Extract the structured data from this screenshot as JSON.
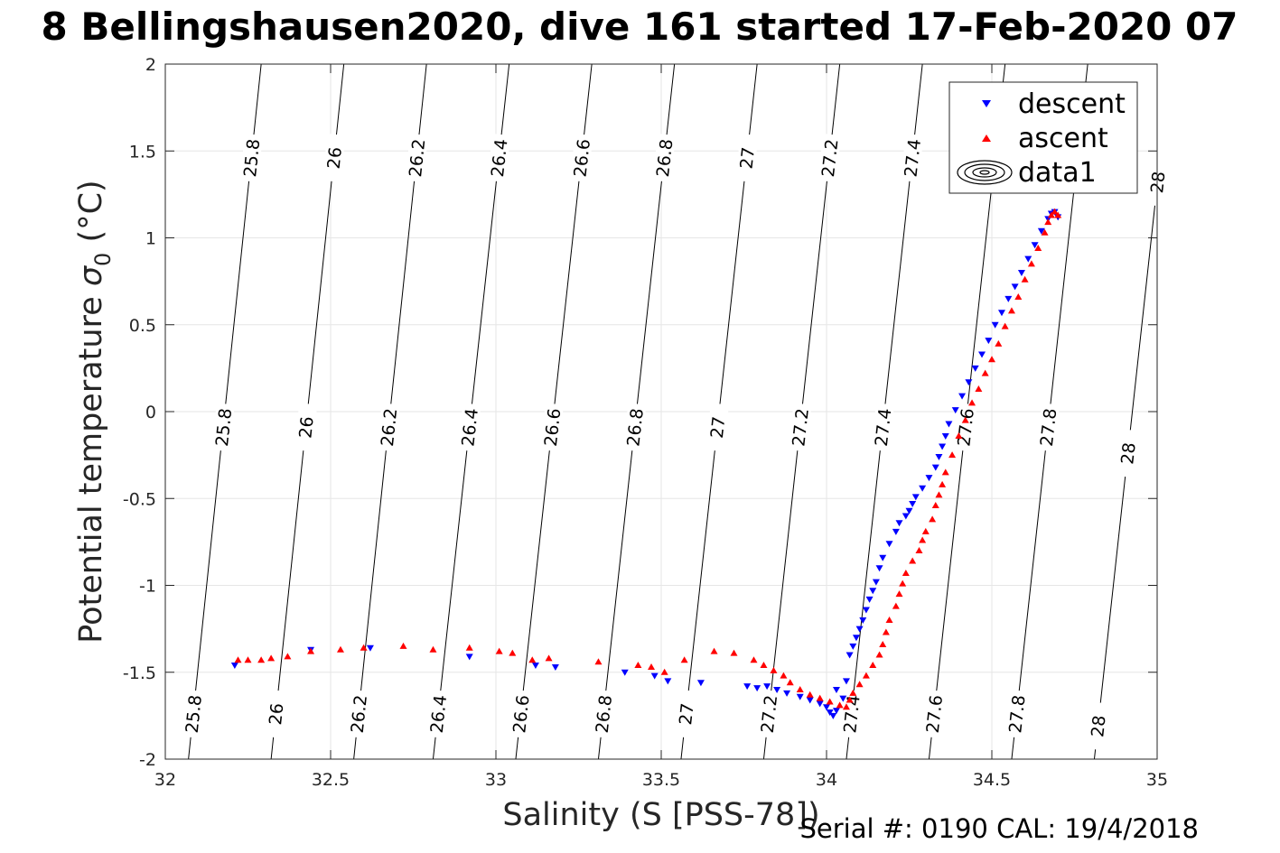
{
  "chart_data": {
    "type": "scatter",
    "title": "8 Bellingshausen2020, dive 161 started 17-Feb-2020 07",
    "xlabel": "Salinity (S [PSS-78])",
    "ylabel_main": "Potential temperature ",
    "ylabel_symbol": "σ",
    "ylabel_subscript": "0",
    "ylabel_unit": " (°C)",
    "footer": "Serial #: 0190  CAL: 19/4/2018",
    "xlim": [
      32,
      35
    ],
    "ylim": [
      -2,
      2
    ],
    "xticks": [
      32,
      32.5,
      33,
      33.5,
      34,
      34.5,
      35
    ],
    "xtick_labels": [
      "32",
      "32.5",
      "33",
      "33.5",
      "34",
      "34.5",
      "35"
    ],
    "yticks": [
      -2,
      -1.5,
      -1,
      -0.5,
      0,
      0.5,
      1,
      1.5,
      2
    ],
    "ytick_labels": [
      "-2",
      "-1.5",
      "-1",
      "-0.5",
      "0",
      "0.5",
      "1",
      "1.5",
      "2"
    ],
    "grid": true,
    "legend_position": "top-right",
    "legend": [
      {
        "label": "descent",
        "marker": "triangle-down",
        "color": "#0000ff"
      },
      {
        "label": "ascent",
        "marker": "triangle-up",
        "color": "#ff0000"
      },
      {
        "label": "data1",
        "marker": "contour",
        "color": "#000000"
      }
    ],
    "density_contours": [
      {
        "level": 25.8,
        "label": "25.8",
        "s_bottom": 32.07,
        "s_top": 32.29,
        "labels_at_t": [
          -1.74,
          -0.09,
          1.46
        ]
      },
      {
        "level": 26.0,
        "label": "26",
        "s_bottom": 32.32,
        "s_top": 32.54,
        "labels_at_t": [
          -1.74,
          -0.09,
          1.46
        ]
      },
      {
        "level": 26.2,
        "label": "26.2",
        "s_bottom": 32.57,
        "s_top": 32.79,
        "labels_at_t": [
          -1.74,
          -0.09,
          1.46
        ]
      },
      {
        "level": 26.4,
        "label": "26.4",
        "s_bottom": 32.81,
        "s_top": 33.04,
        "labels_at_t": [
          -1.74,
          -0.09,
          1.46
        ]
      },
      {
        "level": 26.6,
        "label": "26.6",
        "s_bottom": 33.06,
        "s_top": 33.29,
        "labels_at_t": [
          -1.74,
          -0.09,
          1.46
        ]
      },
      {
        "level": 26.8,
        "label": "26.8",
        "s_bottom": 33.31,
        "s_top": 33.54,
        "labels_at_t": [
          -1.74,
          -0.09,
          1.46
        ]
      },
      {
        "level": 27.0,
        "label": "27",
        "s_bottom": 33.56,
        "s_top": 33.79,
        "labels_at_t": [
          -1.74,
          -0.09,
          1.46
        ]
      },
      {
        "level": 27.2,
        "label": "27.2",
        "s_bottom": 33.81,
        "s_top": 34.04,
        "labels_at_t": [
          -1.74,
          -0.09,
          1.46
        ]
      },
      {
        "level": 27.4,
        "label": "27.4",
        "s_bottom": 34.06,
        "s_top": 34.29,
        "labels_at_t": [
          -1.74,
          -0.09,
          1.46
        ]
      },
      {
        "level": 27.6,
        "label": "27.6",
        "s_bottom": 34.31,
        "s_top": 34.54,
        "labels_at_t": [
          -1.74,
          -0.09
        ]
      },
      {
        "level": 27.8,
        "label": "27.8",
        "s_bottom": 34.56,
        "s_top": 34.79,
        "labels_at_t": [
          -1.74,
          -0.09
        ]
      },
      {
        "level": 28.0,
        "label": "28",
        "s_bottom": 34.81,
        "s_top": 35.04,
        "labels_at_t": [
          -1.81,
          -0.24,
          1.32
        ]
      }
    ],
    "series": [
      {
        "name": "descent",
        "marker": "triangle-down",
        "color": "#0000ff",
        "points": [
          [
            32.21,
            -1.46
          ],
          [
            32.44,
            -1.37
          ],
          [
            32.62,
            -1.36
          ],
          [
            32.92,
            -1.41
          ],
          [
            33.12,
            -1.46
          ],
          [
            33.18,
            -1.47
          ],
          [
            33.39,
            -1.5
          ],
          [
            33.48,
            -1.52
          ],
          [
            33.52,
            -1.55
          ],
          [
            33.62,
            -1.56
          ],
          [
            33.76,
            -1.58
          ],
          [
            33.79,
            -1.59
          ],
          [
            33.82,
            -1.58
          ],
          [
            33.85,
            -1.6
          ],
          [
            33.88,
            -1.62
          ],
          [
            33.92,
            -1.64
          ],
          [
            33.95,
            -1.66
          ],
          [
            33.98,
            -1.68
          ],
          [
            34.0,
            -1.7
          ],
          [
            34.01,
            -1.73
          ],
          [
            34.02,
            -1.75
          ],
          [
            34.03,
            -1.72
          ],
          [
            34.03,
            -1.6
          ],
          [
            34.05,
            -1.65
          ],
          [
            34.06,
            -1.55
          ],
          [
            34.07,
            -1.4
          ],
          [
            34.08,
            -1.35
          ],
          [
            34.09,
            -1.3
          ],
          [
            34.1,
            -1.25
          ],
          [
            34.11,
            -1.2
          ],
          [
            34.12,
            -1.14
          ],
          [
            34.13,
            -1.08
          ],
          [
            34.14,
            -1.03
          ],
          [
            34.15,
            -0.98
          ],
          [
            34.16,
            -0.9
          ],
          [
            34.17,
            -0.84
          ],
          [
            34.19,
            -0.76
          ],
          [
            34.21,
            -0.69
          ],
          [
            34.22,
            -0.64
          ],
          [
            34.24,
            -0.6
          ],
          [
            34.25,
            -0.57
          ],
          [
            34.26,
            -0.53
          ],
          [
            34.27,
            -0.49
          ],
          [
            34.29,
            -0.44
          ],
          [
            34.31,
            -0.38
          ],
          [
            34.33,
            -0.32
          ],
          [
            34.34,
            -0.26
          ],
          [
            34.35,
            -0.2
          ],
          [
            34.36,
            -0.14
          ],
          [
            34.37,
            -0.07
          ],
          [
            34.39,
            0.01
          ],
          [
            34.41,
            0.09
          ],
          [
            34.43,
            0.17
          ],
          [
            34.45,
            0.25
          ],
          [
            34.47,
            0.33
          ],
          [
            34.49,
            0.41
          ],
          [
            34.51,
            0.5
          ],
          [
            34.53,
            0.57
          ],
          [
            34.55,
            0.65
          ],
          [
            34.57,
            0.72
          ],
          [
            34.59,
            0.8
          ],
          [
            34.61,
            0.88
          ],
          [
            34.63,
            0.96
          ],
          [
            34.65,
            1.04
          ],
          [
            34.67,
            1.11
          ],
          [
            34.68,
            1.14
          ],
          [
            34.69,
            1.15
          ],
          [
            34.7,
            1.12
          ]
        ]
      },
      {
        "name": "ascent",
        "marker": "triangle-up",
        "color": "#ff0000",
        "points": [
          [
            32.22,
            -1.43
          ],
          [
            32.25,
            -1.43
          ],
          [
            32.29,
            -1.43
          ],
          [
            32.32,
            -1.42
          ],
          [
            32.37,
            -1.41
          ],
          [
            32.44,
            -1.38
          ],
          [
            32.53,
            -1.37
          ],
          [
            32.6,
            -1.36
          ],
          [
            32.72,
            -1.35
          ],
          [
            32.81,
            -1.37
          ],
          [
            32.92,
            -1.36
          ],
          [
            33.01,
            -1.38
          ],
          [
            33.05,
            -1.39
          ],
          [
            33.11,
            -1.43
          ],
          [
            33.16,
            -1.42
          ],
          [
            33.31,
            -1.44
          ],
          [
            33.43,
            -1.46
          ],
          [
            33.47,
            -1.47
          ],
          [
            33.51,
            -1.5
          ],
          [
            33.57,
            -1.43
          ],
          [
            33.66,
            -1.38
          ],
          [
            33.72,
            -1.39
          ],
          [
            33.78,
            -1.43
          ],
          [
            33.81,
            -1.46
          ],
          [
            33.84,
            -1.49
          ],
          [
            33.87,
            -1.52
          ],
          [
            33.89,
            -1.56
          ],
          [
            33.92,
            -1.6
          ],
          [
            33.95,
            -1.63
          ],
          [
            33.98,
            -1.65
          ],
          [
            34.01,
            -1.67
          ],
          [
            34.04,
            -1.69
          ],
          [
            34.06,
            -1.7
          ],
          [
            34.07,
            -1.66
          ],
          [
            34.08,
            -1.62
          ],
          [
            34.1,
            -1.57
          ],
          [
            34.12,
            -1.52
          ],
          [
            34.14,
            -1.46
          ],
          [
            34.16,
            -1.4
          ],
          [
            34.17,
            -1.34
          ],
          [
            34.18,
            -1.27
          ],
          [
            34.19,
            -1.2
          ],
          [
            34.21,
            -1.12
          ],
          [
            34.22,
            -1.05
          ],
          [
            34.23,
            -0.99
          ],
          [
            34.24,
            -0.93
          ],
          [
            34.26,
            -0.86
          ],
          [
            34.28,
            -0.8
          ],
          [
            34.29,
            -0.74
          ],
          [
            34.3,
            -0.69
          ],
          [
            34.32,
            -0.62
          ],
          [
            34.33,
            -0.54
          ],
          [
            34.34,
            -0.48
          ],
          [
            34.35,
            -0.42
          ],
          [
            34.36,
            -0.35
          ],
          [
            34.38,
            -0.25
          ],
          [
            34.4,
            -0.14
          ],
          [
            34.42,
            -0.05
          ],
          [
            34.44,
            0.05
          ],
          [
            34.46,
            0.13
          ],
          [
            34.48,
            0.22
          ],
          [
            34.5,
            0.3
          ],
          [
            34.52,
            0.39
          ],
          [
            34.54,
            0.49
          ],
          [
            34.56,
            0.58
          ],
          [
            34.58,
            0.66
          ],
          [
            34.6,
            0.76
          ],
          [
            34.62,
            0.85
          ],
          [
            34.64,
            0.94
          ],
          [
            34.66,
            1.03
          ],
          [
            34.67,
            1.09
          ],
          [
            34.68,
            1.13
          ],
          [
            34.69,
            1.15
          ],
          [
            34.7,
            1.13
          ]
        ]
      }
    ]
  }
}
